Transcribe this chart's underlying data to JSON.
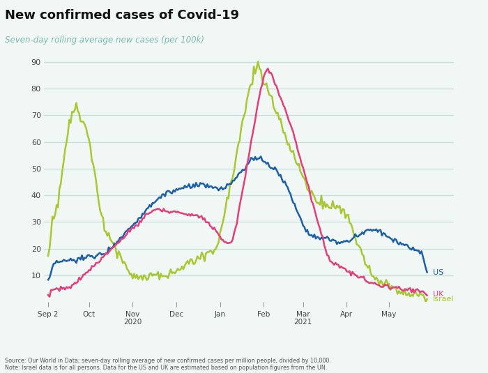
{
  "title": "New confirmed cases of Covid-19",
  "subtitle": "Seven-day rolling average new cases (per 100k)",
  "ylim": [
    0,
    95
  ],
  "yticks": [
    10,
    20,
    30,
    40,
    50,
    60,
    70,
    80,
    90
  ],
  "background_color": "#f0f7f5",
  "plot_bg_color": "#f0f7f5",
  "title_color": "#111111",
  "subtitle_color": "#7bb8ad",
  "grid_color": "#c8deda",
  "us_color": "#1a5fa8",
  "uk_color": "#e63d7a",
  "israel_color": "#a8c830",
  "top_bar_color": "#e63d7a",
  "source_text": "Source: Our World in Data; seven-day rolling average of new confirmed cases per million people, divided by 10,000.\nNote: Israel data is for all persons. Data for the US and UK are estimated based on population figures from the UN.",
  "x_labels": [
    "Sep 2",
    "Oct",
    "Nov\n2020",
    "Dec",
    "Jan",
    "Feb",
    "Mar\n2021",
    "Apr",
    "May"
  ],
  "n_points": 270
}
